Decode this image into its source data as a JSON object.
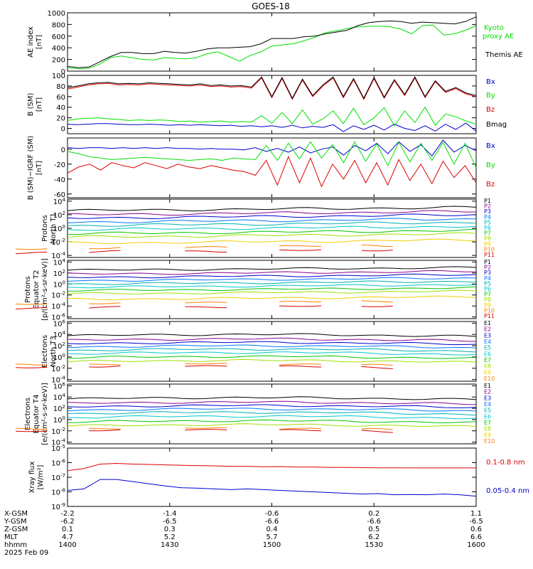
{
  "title": "GOES-18",
  "colors": {
    "black": "#000000",
    "green": "#00e000",
    "blue": "#0000cc",
    "red": "#dd0000",
    "p_levels": [
      "#000000",
      "#8b008b",
      "#0000cc",
      "#0078ff",
      "#00b0b0",
      "#00c8c8",
      "#00c800",
      "#a0e000",
      "#f0d000",
      "#ff8000",
      "#dd0000"
    ]
  },
  "chart_data": [
    {
      "type": "line",
      "id": "ae",
      "ylabel": "AE index [nT]",
      "ylim": [
        0,
        1000
      ],
      "yticks": [
        "1000",
        "800",
        "600",
        "400",
        "200",
        "0"
      ],
      "series": [
        {
          "name": "Kyoto proxy AE",
          "color": "#00e000",
          "values": [
            60,
            40,
            50,
            120,
            230,
            260,
            230,
            200,
            190,
            230,
            220,
            210,
            230,
            300,
            330,
            250,
            170,
            270,
            330,
            430,
            450,
            470,
            520,
            580,
            660,
            690,
            730,
            760,
            770,
            770,
            760,
            720,
            640,
            780,
            790,
            620,
            640,
            700,
            780
          ]
        },
        {
          "name": "Themis AE",
          "color": "#000000",
          "values": [
            80,
            60,
            70,
            160,
            250,
            320,
            320,
            300,
            300,
            340,
            320,
            310,
            340,
            380,
            400,
            400,
            410,
            420,
            470,
            560,
            560,
            560,
            590,
            600,
            640,
            670,
            700,
            780,
            830,
            850,
            860,
            850,
            820,
            840,
            830,
            820,
            810,
            850,
            930
          ]
        }
      ]
    },
    {
      "type": "line",
      "id": "bsm",
      "ylabel": "B (SM) [nT]",
      "ylim": [
        -10,
        100
      ],
      "yticks": [
        "100",
        "80",
        "60",
        "40",
        "20",
        "0"
      ],
      "series": [
        {
          "name": "Bx",
          "color": "#0000cc",
          "values": [
            8,
            7,
            8,
            9,
            9,
            8,
            7,
            7,
            8,
            7,
            6,
            7,
            6,
            7,
            6,
            5,
            6,
            4,
            5,
            3,
            5,
            2,
            6,
            1,
            4,
            2,
            7,
            -6,
            5,
            -2,
            6,
            -3,
            8,
            0,
            -4,
            5,
            -5,
            8,
            -2,
            10,
            -5
          ]
        },
        {
          "name": "By",
          "color": "#00e000",
          "values": [
            15,
            18,
            19,
            20,
            18,
            17,
            15,
            16,
            15,
            16,
            15,
            13,
            14,
            12,
            13,
            14,
            12,
            13,
            12,
            24,
            10,
            30,
            9,
            35,
            8,
            18,
            33,
            9,
            38,
            7,
            20,
            39,
            5,
            33,
            11,
            40,
            6,
            27,
            22,
            14,
            8
          ]
        },
        {
          "name": "Bz",
          "color": "#dd0000",
          "values": [
            74,
            78,
            82,
            84,
            85,
            82,
            83,
            82,
            84,
            83,
            82,
            81,
            80,
            82,
            79,
            80,
            78,
            79,
            76,
            95,
            58,
            94,
            55,
            91,
            60,
            80,
            95,
            58,
            92,
            55,
            94,
            57,
            90,
            62,
            95,
            58,
            88,
            68,
            75,
            65,
            60
          ]
        },
        {
          "name": "Bmag",
          "color": "#000000",
          "values": [
            77,
            80,
            84,
            86,
            87,
            84,
            85,
            84,
            86,
            85,
            84,
            83,
            82,
            84,
            81,
            82,
            80,
            81,
            78,
            97,
            60,
            96,
            57,
            93,
            62,
            82,
            97,
            60,
            94,
            57,
            96,
            59,
            92,
            64,
            97,
            60,
            90,
            70,
            77,
            67,
            62
          ]
        }
      ]
    },
    {
      "type": "line",
      "id": "bigrf",
      "ylabel": "B (SM)-IGRF (SM) [nT]",
      "ylim": [
        -65,
        15
      ],
      "yticks": [
        "0",
        "-20",
        "-40",
        "-60"
      ],
      "series": [
        {
          "name": "Bx",
          "color": "#0000cc",
          "values": [
            2,
            1,
            2,
            2,
            1,
            2,
            1,
            2,
            1,
            2,
            1,
            1,
            0,
            1,
            0,
            0,
            -1,
            2,
            -3,
            1,
            -4,
            3,
            -5,
            0,
            3,
            -8,
            5,
            -2,
            8,
            -6,
            10,
            -3,
            6,
            -9,
            12,
            -4,
            5,
            -2
          ]
        },
        {
          "name": "By",
          "color": "#00e000",
          "values": [
            -3,
            -6,
            -10,
            -12,
            -14,
            -13,
            -12,
            -11,
            -12,
            -13,
            -14,
            -15,
            -14,
            -13,
            -15,
            -12,
            -13,
            -14,
            5,
            -15,
            8,
            -13,
            10,
            -12,
            6,
            -18,
            10,
            -16,
            7,
            -22,
            9,
            -17,
            8,
            -15,
            9,
            -20,
            8,
            -25
          ]
        },
        {
          "name": "Bz",
          "color": "#dd0000",
          "values": [
            -32,
            -24,
            -20,
            -28,
            -18,
            -22,
            -25,
            -18,
            -22,
            -26,
            -20,
            -24,
            -26,
            -22,
            -25,
            -28,
            -30,
            -35,
            -15,
            -48,
            -10,
            -45,
            -12,
            -50,
            -20,
            -40,
            -15,
            -45,
            -18,
            -48,
            -14,
            -42,
            -20,
            -46,
            -16,
            -38,
            -22,
            -45
          ]
        }
      ]
    },
    {
      "type": "line",
      "id": "protN",
      "ylabel": "Protons North T1",
      "yscale": "log",
      "ylim": [
        -4.3,
        4.3
      ],
      "yticks": [
        "10^4",
        "10^2",
        "10^0",
        "10^-2",
        "10^-4"
      ],
      "legend": [
        "P1",
        "P2",
        "P3",
        "P4",
        "P5",
        "P6",
        "P7",
        "P8",
        "P9",
        "P10",
        "P11"
      ]
    },
    {
      "type": "line",
      "id": "protE",
      "ylabel": "Protons Equator T2 [p/(cm²-s-sr-keV)]",
      "yscale": "log",
      "ylim": [
        -6.3,
        4.3
      ],
      "yticks": [
        "10^4",
        "10^2",
        "10^0",
        "10^-2",
        "10^-4",
        "10^-6"
      ],
      "legend": [
        "P1",
        "P2",
        "P3",
        "P4",
        "P5",
        "P6",
        "P7",
        "P8",
        "P9",
        "P10",
        "P11"
      ]
    },
    {
      "type": "line",
      "id": "elecN",
      "ylabel": "Electrons North T3",
      "yscale": "log",
      "ylim": [
        -4.3,
        6.3
      ],
      "yticks": [
        "10^6",
        "10^4",
        "10^2",
        "10^0",
        "10^-2",
        "10^-4"
      ],
      "legend": [
        "E1",
        "E2",
        "E3",
        "E4",
        "E5",
        "E6",
        "E7",
        "E8",
        "E9",
        "E10"
      ]
    },
    {
      "type": "line",
      "id": "elecE",
      "ylabel": "Electrons Equator T4 [e/(cm²-s-sr-keV)]",
      "yscale": "log",
      "ylim": [
        -4.3,
        6.3
      ],
      "yticks": [
        "10^6",
        "10^4",
        "10^2",
        "10^0",
        "10^-2",
        "10^-4"
      ],
      "legend": [
        "E1",
        "E2",
        "E3",
        "E4",
        "E5",
        "E6",
        "E7",
        "E8",
        "E9",
        "E10"
      ]
    },
    {
      "type": "line",
      "id": "xray",
      "ylabel": "Xray flux [W/m²]",
      "yscale": "log",
      "ylim": [
        -9,
        -5
      ],
      "yticks": [
        "10^-5",
        "10^-6",
        "10^-7",
        "10^-8",
        "10^-9"
      ],
      "series": [
        {
          "name": "0.1-0.8 nm",
          "color": "#dd0000",
          "values": [
            -6.55,
            -6.4,
            -6.1,
            -6.05,
            -6.1,
            -6.12,
            -6.15,
            -6.18,
            -6.2,
            -6.22,
            -6.25,
            -6.25,
            -6.28,
            -6.27,
            -6.3,
            -6.3,
            -6.32,
            -6.32,
            -6.34,
            -6.35,
            -6.35,
            -6.36,
            -6.36,
            -6.36,
            -6.36,
            -6.36
          ]
        },
        {
          "name": "0.05-0.4 nm",
          "color": "#0000cc",
          "values": [
            -7.9,
            -7.8,
            -7.15,
            -7.15,
            -7.3,
            -7.45,
            -7.6,
            -7.72,
            -7.75,
            -7.8,
            -7.85,
            -7.8,
            -7.85,
            -7.9,
            -7.95,
            -8.0,
            -8.05,
            -8.1,
            -8.15,
            -8.12,
            -8.2,
            -8.18,
            -8.2,
            -8.15,
            -8.2,
            -8.3
          ]
        }
      ]
    }
  ],
  "xaxis": {
    "rows": [
      {
        "label": "X-GSM",
        "values": [
          "-2.2",
          "-1.4",
          "-0.6",
          "0.2",
          "1.1"
        ]
      },
      {
        "label": "Y-GSM",
        "values": [
          "-6.2",
          "-6.5",
          "-6.6",
          "-6.6",
          "-6.5"
        ]
      },
      {
        "label": "Z-GSM",
        "values": [
          "0.1",
          "0.3",
          "0.4",
          "0.5",
          "0.6"
        ]
      },
      {
        "label": "MLT",
        "values": [
          "4.7",
          "5.2",
          "5.7",
          "6.2",
          "6.6"
        ]
      },
      {
        "label": "hhmm",
        "values": [
          "1400",
          "1430",
          "1500",
          "1530",
          "1600"
        ]
      }
    ],
    "date": "2025 Feb 09"
  }
}
